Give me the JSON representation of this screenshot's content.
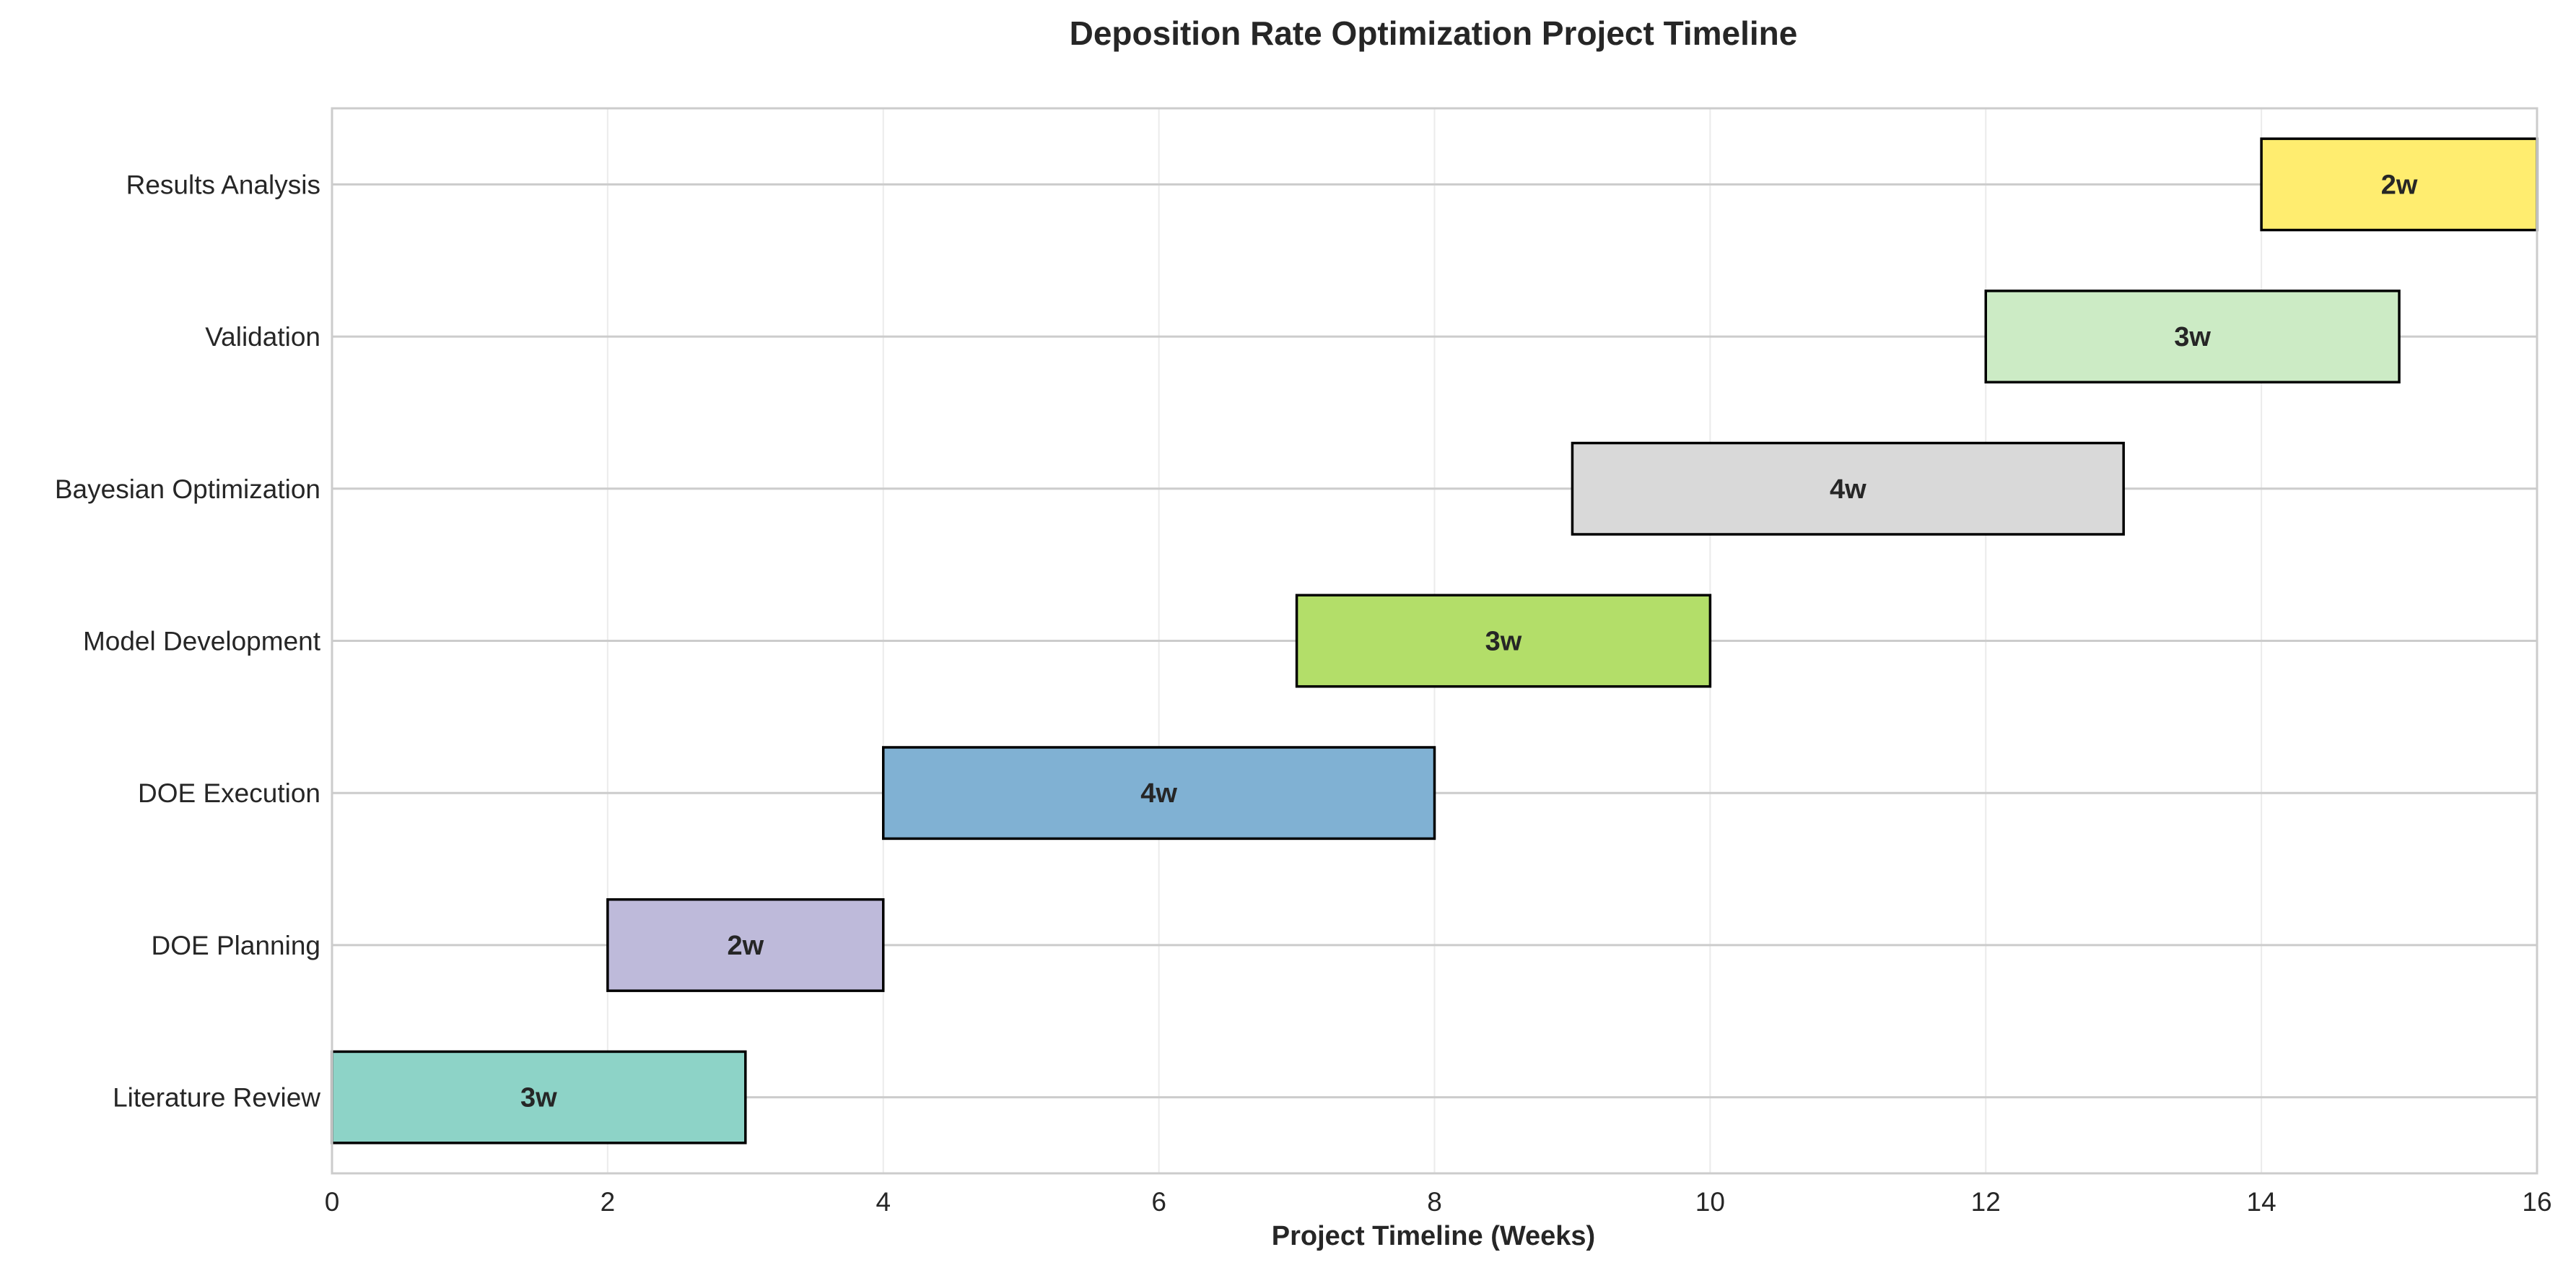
{
  "chart_data": {
    "type": "bar",
    "orientation": "horizontal-gantt",
    "title": "Deposition Rate Optimization Project Timeline",
    "xlabel": "Project Timeline (Weeks)",
    "ylabel": "",
    "xlim": [
      0,
      16
    ],
    "xticks": [
      0,
      2,
      4,
      6,
      8,
      10,
      12,
      14,
      16
    ],
    "grid": true,
    "tasks": [
      {
        "name": "Literature Review",
        "start": 0,
        "duration": 3,
        "label": "3w",
        "color": "#8dd3c7"
      },
      {
        "name": "DOE Planning",
        "start": 2,
        "duration": 2,
        "label": "2w",
        "color": "#bebada"
      },
      {
        "name": "DOE Execution",
        "start": 4,
        "duration": 4,
        "label": "4w",
        "color": "#80b1d3"
      },
      {
        "name": "Model Development",
        "start": 7,
        "duration": 3,
        "label": "3w",
        "color": "#b3de69"
      },
      {
        "name": "Bayesian Optimization",
        "start": 9,
        "duration": 4,
        "label": "4w",
        "color": "#d9d9d9"
      },
      {
        "name": "Validation",
        "start": 12,
        "duration": 3,
        "label": "3w",
        "color": "#ccebc5"
      },
      {
        "name": "Results Analysis",
        "start": 14,
        "duration": 2,
        "label": "2w",
        "color": "#ffed6f"
      }
    ]
  }
}
